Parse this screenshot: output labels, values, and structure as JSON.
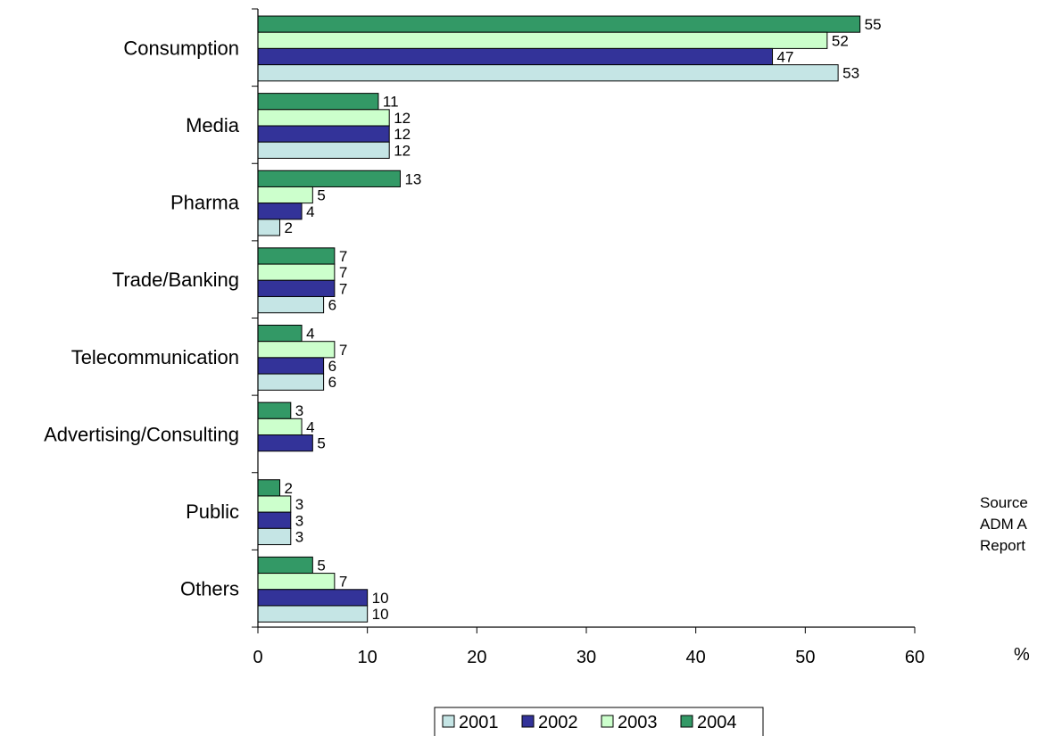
{
  "chart_data": {
    "type": "bar",
    "orientation": "horizontal",
    "categories": [
      "Consumption",
      "Media",
      "Pharma",
      "Trade/Banking",
      "Telecommunication",
      "Advertising/Consulting",
      "Public",
      "Others"
    ],
    "series": [
      {
        "name": "2001",
        "color": "#c5e5e5",
        "values": [
          53,
          12,
          2,
          6,
          6,
          null,
          3,
          10
        ]
      },
      {
        "name": "2002",
        "color": "#333399",
        "values": [
          47,
          12,
          4,
          7,
          6,
          5,
          3,
          10
        ]
      },
      {
        "name": "2003",
        "color": "#ccffcc",
        "values": [
          52,
          12,
          5,
          7,
          7,
          4,
          3,
          7
        ]
      },
      {
        "name": "2004",
        "color": "#339966",
        "values": [
          55,
          11,
          13,
          7,
          4,
          3,
          2,
          5
        ]
      }
    ],
    "xlim": [
      0,
      60
    ],
    "xticks": [
      0,
      10,
      20,
      30,
      40,
      50,
      60
    ],
    "xlabel": "%",
    "legend_position": "bottom",
    "grid": false
  },
  "notes": {
    "source_lines": [
      "Source",
      "ADM A",
      "Report"
    ],
    "unit": "%"
  }
}
